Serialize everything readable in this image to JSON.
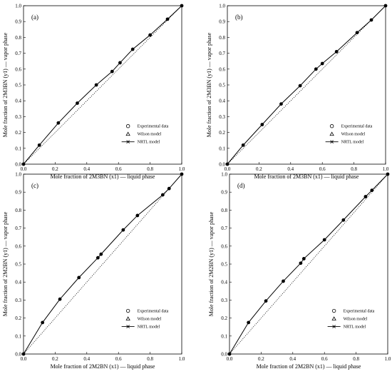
{
  "chart_data": [
    {
      "type": "line",
      "panel_label": "(a)",
      "xlabel": "Mole fraction of 2M3BN (x1) — liquid phase",
      "ylabel": "Mole fraction of 2M3BN (y1) — vapor phase",
      "xlim": [
        0,
        1
      ],
      "ylim": [
        0,
        1
      ],
      "xticks": [
        "0.0",
        "0.2",
        "0.4",
        "0.6",
        "0.8",
        "1.0"
      ],
      "yticks": [
        "0.0",
        "0.1",
        "0.2",
        "0.3",
        "0.4",
        "0.5",
        "0.6",
        "0.7",
        "0.8",
        "0.9",
        "1.0"
      ],
      "legend": {
        "position": "bottom-right",
        "entries": [
          "Experimental data",
          "Wilson model",
          "NRTL model"
        ]
      },
      "diagonal": true,
      "experimental": {
        "x": [
          0.0,
          0.1,
          0.22,
          0.34,
          0.46,
          0.56,
          0.61,
          0.69,
          0.8,
          0.91,
          1.0
        ],
        "y": [
          0.0,
          0.12,
          0.26,
          0.385,
          0.5,
          0.585,
          0.64,
          0.725,
          0.815,
          0.915,
          1.0
        ]
      },
      "model": {
        "x": [
          0.0,
          0.1,
          0.22,
          0.34,
          0.46,
          0.56,
          0.61,
          0.69,
          0.8,
          0.91,
          1.0
        ],
        "y": [
          0.0,
          0.12,
          0.26,
          0.385,
          0.5,
          0.585,
          0.64,
          0.725,
          0.815,
          0.915,
          1.0
        ]
      }
    },
    {
      "type": "line",
      "panel_label": "(b)",
      "xlabel": "Mole fraction of 2M3BN (x1) — liquid phase",
      "ylabel": "Mole fraction of 2M3BN (y1) — vapor phase",
      "xlim": [
        0,
        1
      ],
      "ylim": [
        0,
        1
      ],
      "xticks": [
        "0.0",
        "0.2",
        "0.4",
        "0.6",
        "0.8",
        "1.0"
      ],
      "yticks": [
        "0.0",
        "0.1",
        "0.2",
        "0.3",
        "0.4",
        "0.5",
        "0.6",
        "0.7",
        "0.8",
        "0.9",
        "1.0"
      ],
      "legend": {
        "position": "bottom-right",
        "entries": [
          "Experimental data",
          "Wilson model",
          "NRTL model"
        ]
      },
      "diagonal": true,
      "experimental": {
        "x": [
          0.0,
          0.1,
          0.22,
          0.34,
          0.46,
          0.56,
          0.6,
          0.69,
          0.82,
          0.91,
          1.0
        ],
        "y": [
          0.0,
          0.12,
          0.25,
          0.38,
          0.495,
          0.6,
          0.635,
          0.71,
          0.83,
          0.91,
          1.0
        ]
      },
      "model": {
        "x": [
          0.0,
          0.1,
          0.22,
          0.34,
          0.46,
          0.56,
          0.6,
          0.69,
          0.82,
          0.91,
          1.0
        ],
        "y": [
          0.0,
          0.12,
          0.25,
          0.38,
          0.495,
          0.6,
          0.635,
          0.71,
          0.83,
          0.91,
          1.0
        ]
      }
    },
    {
      "type": "line",
      "panel_label": "(c)",
      "xlabel": "Mole fraction of 2M2BN (x1) — liquid phase",
      "ylabel": "Mole fraction of 2M2BN (y1) — vapor phase",
      "xlim": [
        0,
        1
      ],
      "ylim": [
        0,
        1
      ],
      "xticks": [
        "0.0",
        "0.2",
        "0.4",
        "0.6",
        "0.8",
        "1.0"
      ],
      "yticks": [
        "0.0",
        "0.1",
        "0.2",
        "0.3",
        "0.4",
        "0.5",
        "0.6",
        "0.7",
        "0.8",
        "0.9",
        "1.0"
      ],
      "legend": {
        "position": "bottom-right",
        "entries": [
          "Experimental data",
          "Wilson model",
          "NRTL model"
        ]
      },
      "diagonal": true,
      "experimental": {
        "x": [
          0.0,
          0.12,
          0.23,
          0.35,
          0.47,
          0.49,
          0.63,
          0.72,
          0.88,
          0.92,
          1.0
        ],
        "y": [
          0.0,
          0.175,
          0.305,
          0.425,
          0.535,
          0.555,
          0.69,
          0.77,
          0.885,
          0.92,
          1.0
        ]
      },
      "model": {
        "x": [
          0.0,
          0.12,
          0.23,
          0.35,
          0.47,
          0.49,
          0.63,
          0.72,
          0.88,
          0.92,
          1.0
        ],
        "y": [
          0.0,
          0.175,
          0.305,
          0.425,
          0.535,
          0.555,
          0.69,
          0.77,
          0.885,
          0.92,
          1.0
        ]
      }
    },
    {
      "type": "line",
      "panel_label": "(d)",
      "xlabel": "Mole fraction of 2M2BN (x1) — liquid phase",
      "ylabel": "Mole fraction of 2M2BN (y1) — vapor phase",
      "xlim": [
        0,
        1
      ],
      "ylim": [
        0,
        1
      ],
      "xticks": [
        "0.0",
        "0.2",
        "0.4",
        "0.6",
        "0.8",
        "1.0"
      ],
      "yticks": [
        "0.0",
        "0.1",
        "0.2",
        "0.3",
        "0.4",
        "0.5",
        "0.6",
        "0.7",
        "0.8",
        "0.9",
        "1.0"
      ],
      "legend": {
        "position": "bottom-right",
        "entries": [
          "Experimental data",
          "Wilson model",
          "NRTL model"
        ]
      },
      "diagonal": true,
      "experimental": {
        "x": [
          0.0,
          0.12,
          0.23,
          0.34,
          0.45,
          0.47,
          0.6,
          0.72,
          0.86,
          0.9,
          1.0
        ],
        "y": [
          0.0,
          0.175,
          0.295,
          0.405,
          0.505,
          0.53,
          0.635,
          0.745,
          0.875,
          0.91,
          1.0
        ]
      },
      "model": {
        "x": [
          0.0,
          0.12,
          0.23,
          0.34,
          0.45,
          0.47,
          0.6,
          0.72,
          0.86,
          0.9,
          1.0
        ],
        "y": [
          0.0,
          0.175,
          0.295,
          0.405,
          0.505,
          0.53,
          0.635,
          0.745,
          0.875,
          0.91,
          1.0
        ]
      }
    }
  ]
}
